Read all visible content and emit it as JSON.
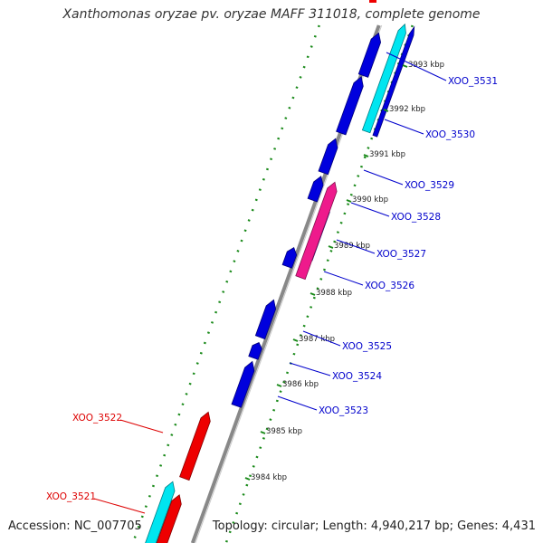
{
  "title": "Xanthomonas oryzae pv. oryzae MAFF 311018, complete genome",
  "footer": {
    "accession": "Accession: NC_007705",
    "topology": "Topology: circular; Length: 4,940,217 bp; Genes: 4,431"
  },
  "colors": {
    "backbone": "#888888",
    "tick_dots": "#1a8a1a",
    "gene_blue": "#0000dd",
    "gene_red": "#ee0000",
    "gene_cyan": "#00e5f0",
    "gene_magenta": "#ee1a8c",
    "label_blue": "#0000cc",
    "label_red": "#dd0000",
    "kbp_text": "#222222"
  },
  "scale_labels": [
    {
      "text": "3993 kbp",
      "kbp": 3993
    },
    {
      "text": "3992 kbp",
      "kbp": 3992
    },
    {
      "text": "3991 kbp",
      "kbp": 3991
    },
    {
      "text": "3990 kbp",
      "kbp": 3990
    },
    {
      "text": "3989 kbp",
      "kbp": 3989
    },
    {
      "text": "3988 kbp",
      "kbp": 3988
    },
    {
      "text": "3987 kbp",
      "kbp": 3987
    },
    {
      "text": "3986 kbp",
      "kbp": 3986
    },
    {
      "text": "3985 kbp",
      "kbp": 3985
    },
    {
      "text": "3984 kbp",
      "kbp": 3984
    }
  ],
  "gene_labels": [
    {
      "text": "XOO_3531",
      "strand": "forward"
    },
    {
      "text": "XOO_3530",
      "strand": "forward"
    },
    {
      "text": "XOO_3529",
      "strand": "forward"
    },
    {
      "text": "XOO_3528",
      "strand": "forward"
    },
    {
      "text": "XOO_3527",
      "strand": "forward"
    },
    {
      "text": "XOO_3526",
      "strand": "forward"
    },
    {
      "text": "XOO_3525",
      "strand": "forward"
    },
    {
      "text": "XOO_3524",
      "strand": "forward"
    },
    {
      "text": "XOO_3523",
      "strand": "forward"
    },
    {
      "text": "XOO_3522",
      "strand": "reverse"
    },
    {
      "text": "XOO_3521",
      "strand": "reverse"
    }
  ]
}
